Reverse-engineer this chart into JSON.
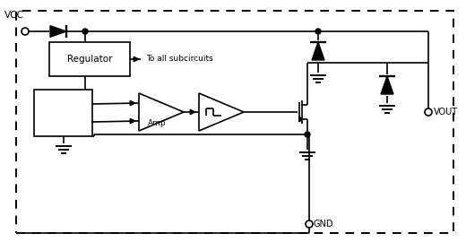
{
  "fig_width": 5.2,
  "fig_height": 2.7,
  "dpi": 100,
  "bg_color": "white",
  "lc": "black",
  "lw": 1.2,
  "vcc_label": "VCC",
  "vout_label": "VOUT",
  "gnd_label": "GND",
  "regulator_label": "Regulator",
  "amp_label": "Amp",
  "subcircuits_label": "To all subcircuits"
}
